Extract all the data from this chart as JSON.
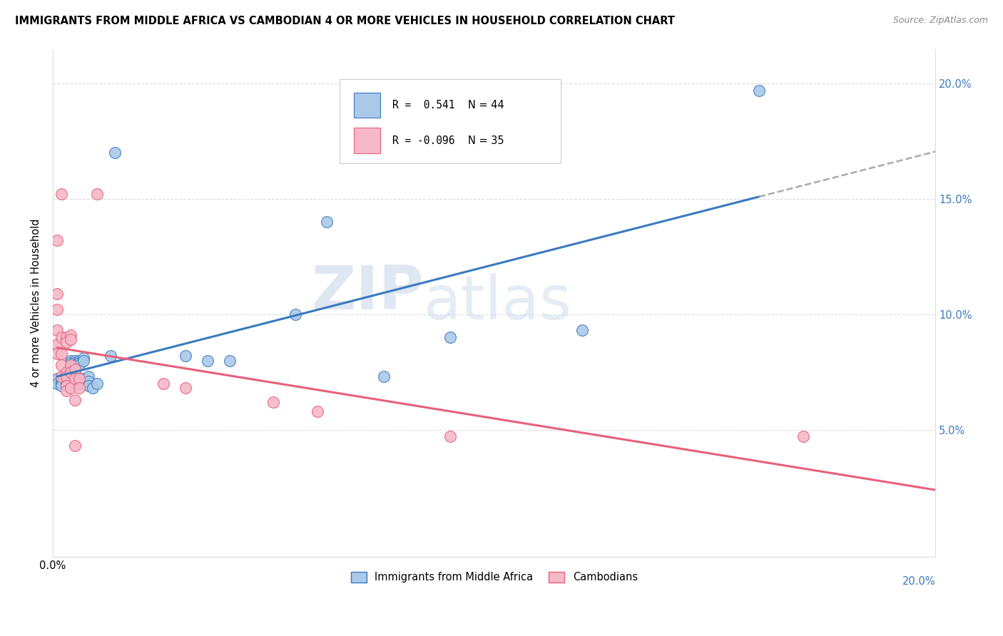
{
  "title": "IMMIGRANTS FROM MIDDLE AFRICA VS CAMBODIAN 4 OR MORE VEHICLES IN HOUSEHOLD CORRELATION CHART",
  "source": "Source: ZipAtlas.com",
  "ylabel": "4 or more Vehicles in Household",
  "legend_blue_r": "R =  0.541",
  "legend_blue_n": "N = 44",
  "legend_pink_r": "R = -0.096",
  "legend_pink_n": "N = 35",
  "legend_blue_label": "Immigrants from Middle Africa",
  "legend_pink_label": "Cambodians",
  "blue_color": "#aac9e8",
  "pink_color": "#f5b8c8",
  "blue_line_color": "#3a7abf",
  "pink_line_color": "#e8607a",
  "dashed_line_color": "#aaaaaa",
  "watermark_zip": "ZIP",
  "watermark_atlas": "atlas",
  "blue_dots": [
    [
      0.001,
      0.072
    ],
    [
      0.001,
      0.07
    ],
    [
      0.002,
      0.071
    ],
    [
      0.002,
      0.07
    ],
    [
      0.002,
      0.069
    ],
    [
      0.003,
      0.073
    ],
    [
      0.003,
      0.071
    ],
    [
      0.003,
      0.07
    ],
    [
      0.003,
      0.069
    ],
    [
      0.004,
      0.08
    ],
    [
      0.004,
      0.079
    ],
    [
      0.004,
      0.072
    ],
    [
      0.004,
      0.071
    ],
    [
      0.004,
      0.07
    ],
    [
      0.005,
      0.08
    ],
    [
      0.005,
      0.079
    ],
    [
      0.005,
      0.078
    ],
    [
      0.005,
      0.076
    ],
    [
      0.005,
      0.075
    ],
    [
      0.006,
      0.08
    ],
    [
      0.006,
      0.079
    ],
    [
      0.006,
      0.078
    ],
    [
      0.006,
      0.072
    ],
    [
      0.006,
      0.07
    ],
    [
      0.007,
      0.081
    ],
    [
      0.007,
      0.08
    ],
    [
      0.007,
      0.072
    ],
    [
      0.007,
      0.07
    ],
    [
      0.008,
      0.073
    ],
    [
      0.008,
      0.071
    ],
    [
      0.008,
      0.069
    ],
    [
      0.009,
      0.068
    ],
    [
      0.01,
      0.07
    ],
    [
      0.013,
      0.082
    ],
    [
      0.014,
      0.17
    ],
    [
      0.03,
      0.082
    ],
    [
      0.035,
      0.08
    ],
    [
      0.04,
      0.08
    ],
    [
      0.055,
      0.1
    ],
    [
      0.062,
      0.14
    ],
    [
      0.075,
      0.073
    ],
    [
      0.09,
      0.09
    ],
    [
      0.12,
      0.093
    ],
    [
      0.16,
      0.197
    ]
  ],
  "pink_dots": [
    [
      0.001,
      0.132
    ],
    [
      0.001,
      0.109
    ],
    [
      0.001,
      0.102
    ],
    [
      0.001,
      0.093
    ],
    [
      0.001,
      0.087
    ],
    [
      0.001,
      0.083
    ],
    [
      0.002,
      0.152
    ],
    [
      0.002,
      0.09
    ],
    [
      0.002,
      0.083
    ],
    [
      0.002,
      0.078
    ],
    [
      0.002,
      0.073
    ],
    [
      0.003,
      0.09
    ],
    [
      0.003,
      0.088
    ],
    [
      0.003,
      0.075
    ],
    [
      0.003,
      0.073
    ],
    [
      0.003,
      0.069
    ],
    [
      0.003,
      0.067
    ],
    [
      0.004,
      0.091
    ],
    [
      0.004,
      0.089
    ],
    [
      0.004,
      0.078
    ],
    [
      0.004,
      0.075
    ],
    [
      0.004,
      0.068
    ],
    [
      0.005,
      0.076
    ],
    [
      0.005,
      0.072
    ],
    [
      0.005,
      0.063
    ],
    [
      0.005,
      0.043
    ],
    [
      0.006,
      0.072
    ],
    [
      0.006,
      0.068
    ],
    [
      0.01,
      0.152
    ],
    [
      0.025,
      0.07
    ],
    [
      0.03,
      0.068
    ],
    [
      0.05,
      0.062
    ],
    [
      0.06,
      0.058
    ],
    [
      0.09,
      0.047
    ],
    [
      0.17,
      0.047
    ]
  ],
  "xlim": [
    0.0,
    0.2
  ],
  "ylim": [
    -0.005,
    0.215
  ],
  "ytick_vals": [
    0.05,
    0.1,
    0.15,
    0.2
  ],
  "ytick_labels": [
    "5.0%",
    "10.0%",
    "15.0%",
    "20.0%"
  ],
  "xtick_vals": [
    0.0,
    0.05,
    0.1,
    0.15,
    0.2
  ],
  "xtick_labels_left": [
    "0.0%",
    "",
    "",
    "",
    ""
  ],
  "xtick_label_right": "20.0%"
}
